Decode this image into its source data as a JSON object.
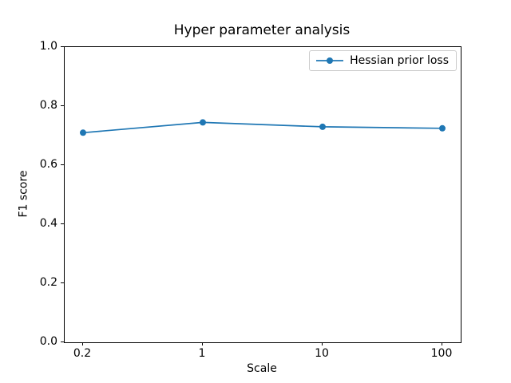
{
  "figure": {
    "background": "#ffffff",
    "axes_edge_color": "#000000",
    "legend_border_color": "#cccccc"
  },
  "chart_data": {
    "type": "line",
    "title": "Hyper parameter analysis",
    "xlabel": "Scale",
    "ylabel": "F1 score",
    "categories": [
      "0.2",
      "1",
      "10",
      "100"
    ],
    "series": [
      {
        "name": "Hessian prior loss",
        "color": "#1f77b4",
        "marker": "circle",
        "values": [
          0.71,
          0.745,
          0.73,
          0.725
        ]
      }
    ],
    "ylim": [
      0.0,
      1.0
    ],
    "y_ticks": [
      "0.0",
      "0.2",
      "0.4",
      "0.6",
      "0.8",
      "1.0"
    ],
    "grid": false,
    "legend_position": "upper right"
  }
}
